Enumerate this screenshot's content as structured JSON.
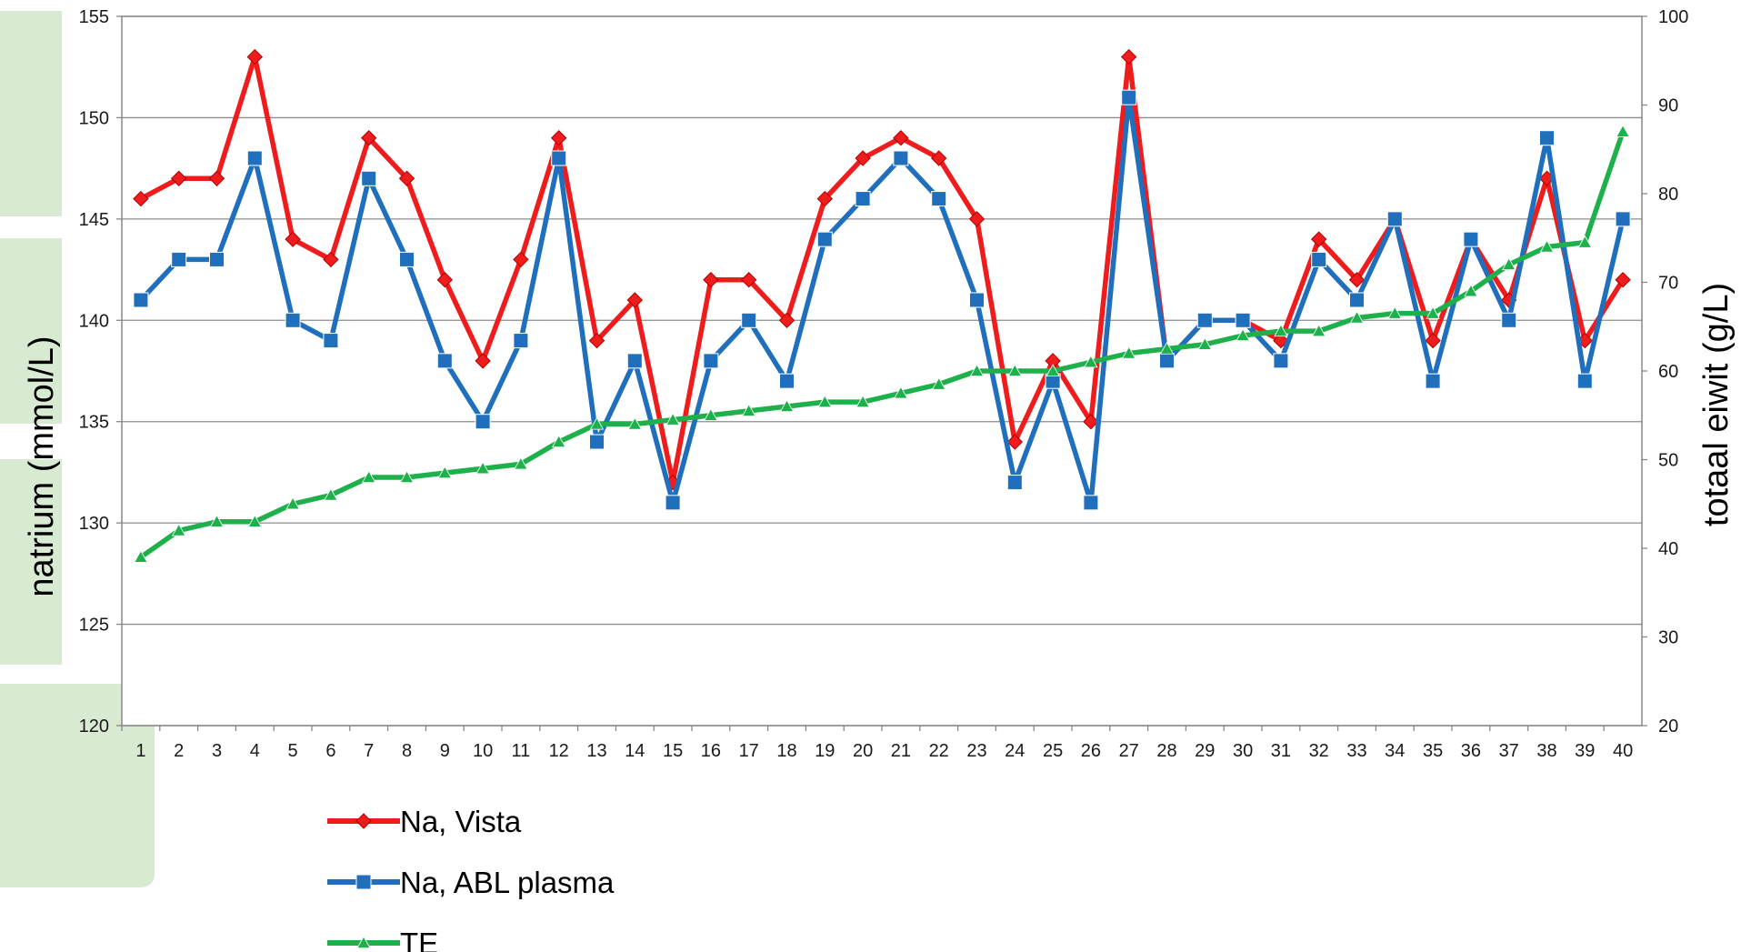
{
  "chart_data": {
    "type": "line",
    "title": "",
    "categories": [
      "1",
      "2",
      "3",
      "4",
      "5",
      "6",
      "7",
      "8",
      "9",
      "10",
      "11",
      "12",
      "13",
      "14",
      "15",
      "16",
      "17",
      "18",
      "19",
      "20",
      "21",
      "22",
      "23",
      "24",
      "25",
      "26",
      "27",
      "28",
      "29",
      "30",
      "31",
      "32",
      "33",
      "34",
      "35",
      "36",
      "37",
      "38",
      "39",
      "40"
    ],
    "left_axis": {
      "label": "natrium (mmol/L)",
      "ylim": [
        120,
        155
      ],
      "ticks": [
        "120",
        "125",
        "130",
        "135",
        "140",
        "145",
        "150",
        "155"
      ]
    },
    "right_axis": {
      "label": "totaal eiwit (g/L)",
      "ylim": [
        20,
        100
      ],
      "ticks": [
        "20",
        "30",
        "40",
        "50",
        "60",
        "70",
        "80",
        "90",
        "100"
      ]
    },
    "grid": true,
    "legend_position": "bottom",
    "series": [
      {
        "name": "Na, Vista",
        "axis": "left",
        "color": "#ee1c1c",
        "marker": "diamond",
        "values": [
          146,
          147,
          147,
          153,
          144,
          143,
          149,
          147,
          142,
          138,
          143,
          149,
          139,
          141,
          132,
          142,
          142,
          140,
          146,
          148,
          149,
          148,
          145,
          134,
          138,
          135,
          153,
          138,
          140,
          140,
          139,
          144,
          142,
          145,
          139,
          144,
          141,
          147,
          139,
          142
        ]
      },
      {
        "name": "Na, ABL plasma",
        "axis": "left",
        "color": "#1f6fbd",
        "marker": "square",
        "values": [
          141,
          143,
          143,
          148,
          140,
          139,
          147,
          143,
          138,
          135,
          139,
          148,
          134,
          138,
          131,
          138,
          140,
          137,
          144,
          146,
          148,
          146,
          141,
          132,
          137,
          131,
          151,
          138,
          140,
          140,
          138,
          143,
          141,
          145,
          137,
          144,
          140,
          149,
          137,
          145
        ]
      },
      {
        "name": "TE",
        "axis": "right",
        "color": "#1db04b",
        "marker": "triangle",
        "values": [
          39,
          42,
          43,
          43,
          45,
          46,
          48,
          48,
          48.5,
          49,
          49.5,
          52,
          54,
          54,
          54.5,
          55,
          55.5,
          56,
          56.5,
          56.5,
          57.5,
          58.5,
          60,
          60,
          60,
          61,
          62,
          62.5,
          63,
          64,
          64.5,
          64.5,
          66,
          66.5,
          66.5,
          69,
          72,
          74,
          74.5,
          87
        ]
      }
    ]
  }
}
